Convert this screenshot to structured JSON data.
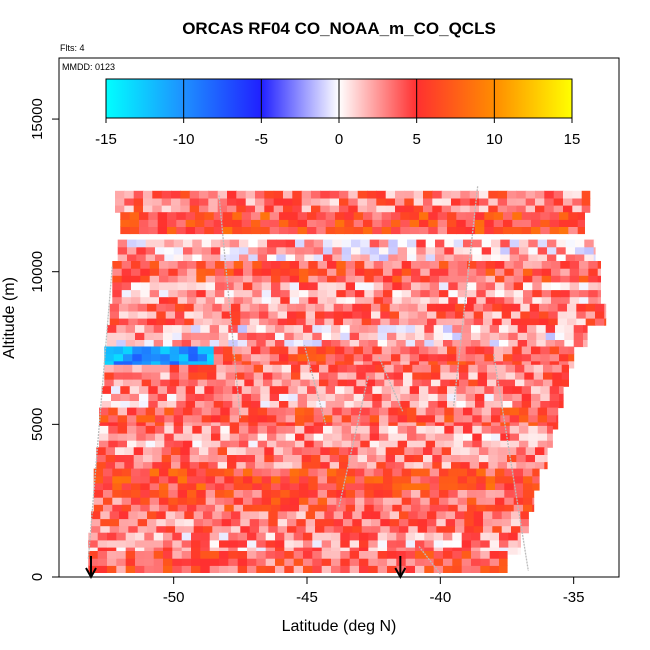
{
  "chart_data": {
    "type": "heatmap",
    "title": "ORCAS RF04 CO_NOAA_m_CO_QCLS",
    "xlabel": "Latitude (deg N)",
    "ylabel": "Altitude (m)",
    "xlim": [
      -54.3,
      -33.3
    ],
    "ylim": [
      0,
      17000
    ],
    "xticks": [
      -50,
      -45,
      -40,
      -35
    ],
    "xtick_labels": [
      "-50",
      "-45",
      "-40",
      "-35"
    ],
    "yticks": [
      0,
      5000,
      10000,
      15000
    ],
    "ytick_labels": [
      "0",
      "5000",
      "10000",
      "15000"
    ],
    "grid": false,
    "annotations": {
      "flights": "Flts: 4",
      "date": "MMDD: 0123"
    },
    "colorbar": {
      "range": [
        -15,
        15
      ],
      "ticks": [
        -15,
        -10,
        -5,
        0,
        5,
        10,
        15
      ],
      "tick_labels": [
        "-15",
        "-10",
        "-5",
        "0",
        "5",
        "10",
        "15"
      ],
      "colors": [
        "#00ffff",
        "#1e90ff",
        "#2020ff",
        "#ffffff",
        "#ff3030",
        "#ff8c00",
        "#ffff00"
      ],
      "placement": "top-inset"
    },
    "arrows_lat": [
      -53.1,
      -41.5
    ],
    "series": [
      {
        "lat_start": -52.2,
        "lat_end": -34.4,
        "alt": 12300,
        "value": 4
      },
      {
        "lat_start": -52.0,
        "lat_end": -34.6,
        "alt": 11600,
        "value": 6
      },
      {
        "lat_start": -52.1,
        "lat_end": -34.2,
        "alt": 10700,
        "value": 2
      },
      {
        "lat_start": -52.3,
        "lat_end": -34.0,
        "alt": 10000,
        "value": 5
      },
      {
        "lat_start": -52.3,
        "lat_end": -34.0,
        "alt": 9300,
        "value": 3
      },
      {
        "lat_start": -52.4,
        "lat_end": -33.8,
        "alt": 8600,
        "value": 4
      },
      {
        "lat_start": -52.5,
        "lat_end": -34.5,
        "alt": 7900,
        "value": 2
      },
      {
        "lat_start": -52.6,
        "lat_end": -48.5,
        "alt": 7200,
        "value": -10
      },
      {
        "lat_start": -48.5,
        "lat_end": -35.0,
        "alt": 7200,
        "value": 5
      },
      {
        "lat_start": -52.6,
        "lat_end": -35.2,
        "alt": 6600,
        "value": 4
      },
      {
        "lat_start": -52.7,
        "lat_end": -35.4,
        "alt": 5900,
        "value": 3
      },
      {
        "lat_start": -52.8,
        "lat_end": -35.6,
        "alt": 5200,
        "value": 5
      },
      {
        "lat_start": -52.8,
        "lat_end": -35.8,
        "alt": 4600,
        "value": 3
      },
      {
        "lat_start": -52.9,
        "lat_end": -36.0,
        "alt": 3900,
        "value": 4
      },
      {
        "lat_start": -53.0,
        "lat_end": -36.3,
        "alt": 3200,
        "value": 6
      },
      {
        "lat_start": -53.0,
        "lat_end": -36.5,
        "alt": 2500,
        "value": 5
      },
      {
        "lat_start": -53.1,
        "lat_end": -36.7,
        "alt": 1800,
        "value": 4
      },
      {
        "lat_start": -53.2,
        "lat_end": -37.0,
        "alt": 1100,
        "value": 3
      },
      {
        "lat_start": -53.2,
        "lat_end": -37.5,
        "alt": 500,
        "value": 5
      }
    ]
  }
}
